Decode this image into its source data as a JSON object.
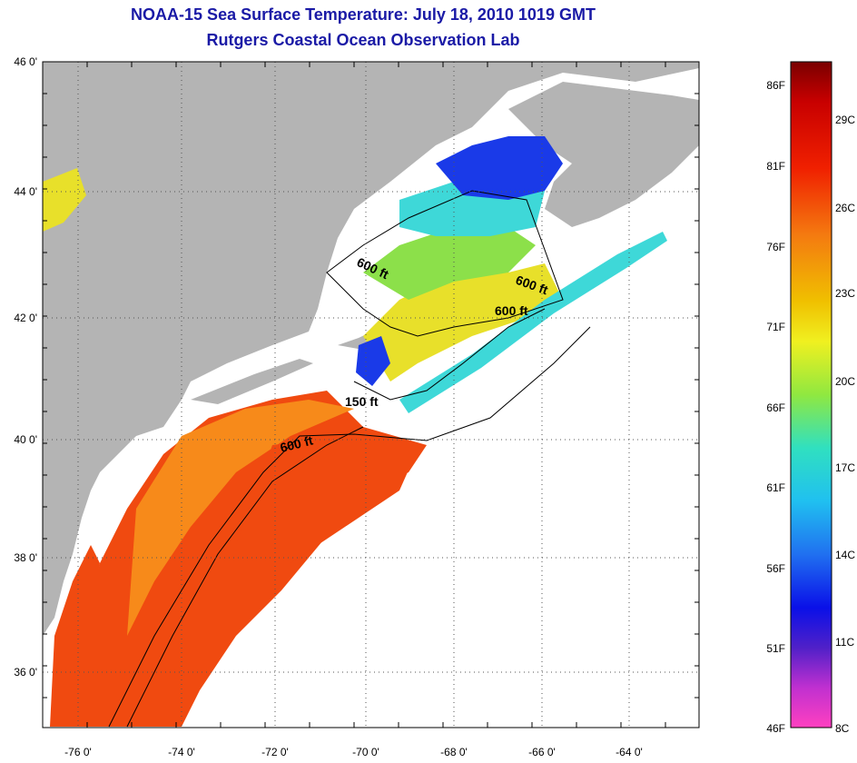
{
  "title": {
    "line1": "NOAA-15 Sea Surface Temperature:  July 18, 2010 1019 GMT",
    "line2": "Rutgers Coastal Ocean Observation Lab"
  },
  "map": {
    "lat_labels": [
      "46 0'",
      "44 0'",
      "42 0'",
      "40 0'",
      "38 0'",
      "36 0'"
    ],
    "lon_labels": [
      "-76 0'",
      "-74 0'",
      "-72 0'",
      "-70 0'",
      "-68 0'",
      "-66 0'",
      "-64 0'"
    ],
    "contour_labels": [
      "600 ft",
      "600 ft",
      "600 ft",
      "150 ft",
      "600 ft"
    ],
    "colors": {
      "land": "#b4b4b4",
      "cloud": "#ffffff",
      "warm": "#f04a10",
      "orange": "#f78a1a",
      "yellow": "#e8e02a",
      "green": "#8ce04a",
      "cyan": "#3ed8d8",
      "blue": "#1a3ae8"
    }
  },
  "colorbar": {
    "fahrenheit": [
      "86F",
      "81F",
      "76F",
      "71F",
      "66F",
      "61F",
      "56F",
      "51F",
      "46F"
    ],
    "celsius": [
      "29C",
      "26C",
      "23C",
      "20C",
      "17C",
      "14C",
      "11C",
      "8C"
    ]
  }
}
